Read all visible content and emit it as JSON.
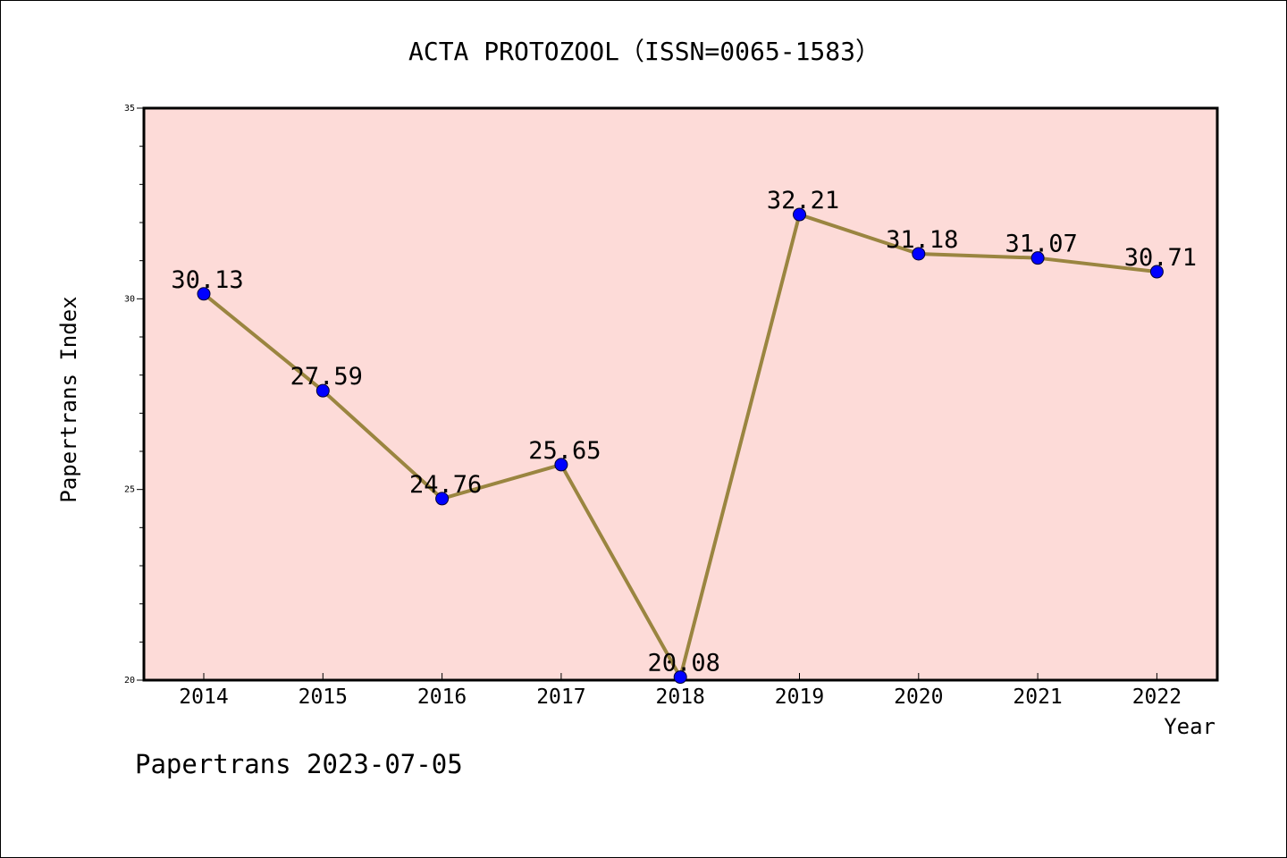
{
  "chart_data": {
    "type": "line",
    "title": "ACTA PROTOZOOL（ISSN=0065-1583）",
    "xlabel": "Year",
    "ylabel": "Papertrans Index",
    "categories": [
      "2014",
      "2015",
      "2016",
      "2017",
      "2018",
      "2019",
      "2020",
      "2021",
      "2022"
    ],
    "series": [
      {
        "values": [
          30.13,
          27.59,
          24.76,
          25.65,
          20.08,
          32.21,
          31.18,
          31.07,
          30.71
        ],
        "labels": [
          "30.13",
          "27.59",
          "24.76",
          "25.65",
          "20.08",
          "32.21",
          "31.18",
          "31.07",
          "30.71"
        ]
      }
    ],
    "ylim": [
      20,
      35
    ],
    "yticks": [
      {
        "value": 20,
        "label": "20"
      },
      {
        "value": 25,
        "label": "25"
      },
      {
        "value": 30,
        "label": "30"
      },
      {
        "value": 35,
        "label": "35"
      }
    ],
    "grid": false,
    "footer": "Papertrans 2023-07-05",
    "colors": {
      "plot_background": "#fddbd8",
      "line": "#9a8540",
      "marker": "#0000ff",
      "axis": "#000000"
    }
  }
}
